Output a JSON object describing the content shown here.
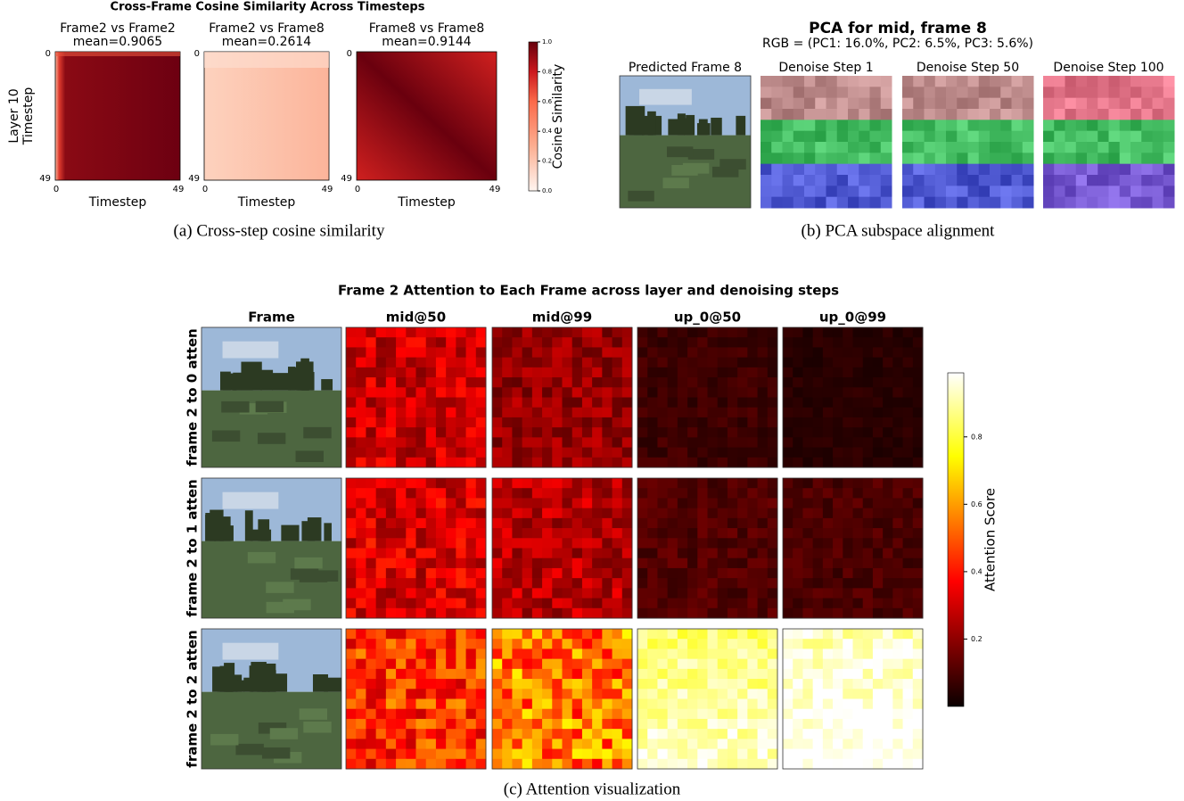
{
  "panel_a": {
    "title": "Cross-Frame Cosine Similarity Across Timesteps",
    "subplots": [
      {
        "title": "Frame2 vs Frame2",
        "mean": "mean=0.9065"
      },
      {
        "title": "Frame2 vs Frame8",
        "mean": "mean=0.2614"
      },
      {
        "title": "Frame8 vs Frame8",
        "mean": "mean=0.9144"
      }
    ],
    "y_label": [
      "Layer 10",
      "Timestep"
    ],
    "x_label": "Timestep",
    "axis_ticks": [
      0,
      49
    ],
    "colorbar": {
      "label": "Cosine Similarity",
      "lim": [
        0,
        1
      ],
      "ticks": [
        {
          "value": 0,
          "label": "0.0"
        },
        0.2,
        0.4,
        0.6,
        0.8,
        {
          "value": 1,
          "label": "1.0"
        }
      ]
    },
    "caption": "(a) Cross-step cosine similarity"
  },
  "panel_b": {
    "title": "PCA for mid, frame 8",
    "subtitle": "RGB = (PC1: 16.0%, PC2: 6.5%, PC3: 5.6%)",
    "images": [
      "Predicted Frame 8",
      "Denoise Step 1",
      "Denoise Step 50",
      "Denoise Step 100"
    ],
    "caption": "(b) PCA subspace alignment"
  },
  "panel_c": {
    "title": "Frame 2 Attention to Each Frame across layer and denoising steps",
    "columns": [
      "Frame",
      "mid@50",
      "mid@99",
      "up_0@50",
      "up_0@99"
    ],
    "rows": [
      "frame 2 to 0 atten",
      "frame 2 to 1 atten",
      "frame 2 to 2 atten"
    ],
    "colorbar": {
      "label": "Attention Score",
      "lim": [
        0,
        0.99
      ],
      "ticks": [
        0.2,
        0.4,
        0.6,
        0.8
      ]
    },
    "caption": "(c) Attention visualization"
  }
}
